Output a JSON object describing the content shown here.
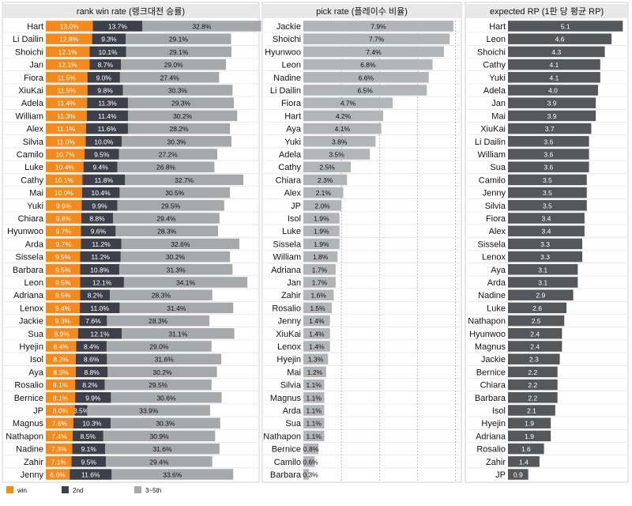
{
  "colors": {
    "win": "#f28a1e",
    "second": "#3d3f4a",
    "third_fifth": "#a6a8ab",
    "pick": "#b3b4b6",
    "rp": "#55575a",
    "panel_header_bg": "#e8e8e8",
    "panel_border": "#cfcfcf"
  },
  "chart_data": [
    {
      "type": "bar",
      "stacked": true,
      "orientation": "horizontal",
      "title": "rank win rate (랭크대전 승률)",
      "categories": [
        "Hart",
        "Li Dailin",
        "Shoichi",
        "Jan",
        "Fiora",
        "XiuKai",
        "Adela",
        "William",
        "Alex",
        "Silvia",
        "Camilo",
        "Luke",
        "Cathy",
        "Mai",
        "Yuki",
        "Chiara",
        "Hyunwoo",
        "Arda",
        "Sissela",
        "Barbara",
        "Leon",
        "Adriana",
        "Lenox",
        "Jackie",
        "Sua",
        "Hyejin",
        "Isol",
        "Aya",
        "Rosalio",
        "Bernice",
        "JP",
        "Magnus",
        "Nathapon",
        "Nadine",
        "Zahir",
        "Jenny"
      ],
      "series": [
        {
          "name": "win",
          "values": [
            13.0,
            12.8,
            12.1,
            12.1,
            11.5,
            11.5,
            11.4,
            11.3,
            11.1,
            11.0,
            10.7,
            10.4,
            10.1,
            10.0,
            9.9,
            9.8,
            9.7,
            9.7,
            9.5,
            9.5,
            9.5,
            9.5,
            9.4,
            9.3,
            8.9,
            8.4,
            8.3,
            8.3,
            8.1,
            8.1,
            8.0,
            7.6,
            7.4,
            7.3,
            7.1,
            6.6
          ]
        },
        {
          "name": "2nd",
          "values": [
            13.7,
            9.3,
            10.1,
            8.7,
            9.0,
            9.8,
            11.3,
            11.4,
            11.6,
            10.0,
            9.5,
            9.4,
            11.8,
            10.4,
            9.9,
            8.8,
            9.6,
            11.2,
            11.2,
            10.8,
            12.1,
            8.2,
            11.0,
            7.6,
            12.1,
            8.4,
            8.6,
            8.8,
            8.2,
            9.9,
            3.5,
            10.3,
            8.5,
            9.1,
            9.5,
            11.6
          ]
        },
        {
          "name": "3~5th",
          "values": [
            32.8,
            29.1,
            29.1,
            29.0,
            27.4,
            30.3,
            29.3,
            30.2,
            28.2,
            30.3,
            27.2,
            26.8,
            32.7,
            30.5,
            29.5,
            29.4,
            28.3,
            32.6,
            30.2,
            31.3,
            34.1,
            28.3,
            31.4,
            28.3,
            31.1,
            29.0,
            31.6,
            30.2,
            29.5,
            30.6,
            33.9,
            30.3,
            30.9,
            31.6,
            29.4,
            33.6
          ]
        }
      ]
    },
    {
      "type": "bar",
      "orientation": "horizontal",
      "title": "pick rate (플레이수 비율)",
      "categories": [
        "Jackie",
        "Shoichi",
        "Hyunwoo",
        "Leon",
        "Nadine",
        "Li Dailin",
        "Fiora",
        "Hart",
        "Aya",
        "Yuki",
        "Adela",
        "Cathy",
        "Chiara",
        "Alex",
        "JP",
        "Isol",
        "Luke",
        "Sissela",
        "William",
        "Adriana",
        "Jan",
        "Zahir",
        "Rosalio",
        "Jenny",
        "XiuKai",
        "Lenox",
        "Hyejin",
        "Mai",
        "Silvia",
        "Magnus",
        "Arda",
        "Sua",
        "Nathapon",
        "Bernice",
        "Camilo",
        "Barbara"
      ],
      "values": [
        7.9,
        7.7,
        7.4,
        6.8,
        6.6,
        6.5,
        4.7,
        4.2,
        4.1,
        3.8,
        3.5,
        2.5,
        2.3,
        2.1,
        2.0,
        1.9,
        1.9,
        1.9,
        1.8,
        1.7,
        1.7,
        1.6,
        1.5,
        1.4,
        1.4,
        1.4,
        1.3,
        1.2,
        1.1,
        1.1,
        1.1,
        1.1,
        1.1,
        0.8,
        0.6,
        0.3
      ],
      "labels": [
        "7.9%",
        "7.7%",
        "7.4%",
        "6.8%",
        "6.6%",
        "6.5%",
        "4.7%",
        "4.2%",
        "4.1%",
        "3.8%",
        "3.5%",
        "2.5%",
        "2.3%",
        "2.1%",
        "2.0%",
        "1.9%",
        "1.9%",
        "1.9%",
        "1.8%",
        "1.7%",
        "1.7%",
        "1.6%",
        "1.5%",
        "1.4%",
        "1.4%",
        "1.4%",
        "1.3%",
        "1.2%",
        "1.1%",
        "1.1%",
        "1.1%",
        "1.1%",
        "1.1%",
        "0.8%",
        "0.6%",
        "0.3%"
      ]
    },
    {
      "type": "bar",
      "orientation": "horizontal",
      "title": "expected RP (1판 당 평균 RP)",
      "categories": [
        "Hart",
        "Leon",
        "Shoichi",
        "Cathy",
        "Yuki",
        "Adela",
        "Jan",
        "Mai",
        "XiuKai",
        "Li Dailin",
        "William",
        "Sua",
        "Camilo",
        "Jenny",
        "Silvia",
        "Fiora",
        "Alex",
        "Sissela",
        "Lenox",
        "Aya",
        "Arda",
        "Nadine",
        "Luke",
        "Nathapon",
        "Hyunwoo",
        "Magnus",
        "Jackie",
        "Bernice",
        "Chiara",
        "Barbara",
        "Isol",
        "Hyejin",
        "Adriana",
        "Rosalio",
        "Zahir",
        "JP"
      ],
      "values": [
        5.1,
        4.6,
        4.3,
        4.1,
        4.1,
        4.0,
        3.9,
        3.9,
        3.7,
        3.6,
        3.6,
        3.6,
        3.5,
        3.5,
        3.5,
        3.4,
        3.4,
        3.3,
        3.3,
        3.1,
        3.1,
        2.9,
        2.6,
        2.5,
        2.4,
        2.4,
        2.3,
        2.2,
        2.2,
        2.2,
        2.1,
        1.9,
        1.9,
        1.6,
        1.4,
        0.9
      ],
      "labels": [
        "5.1",
        "4.6",
        "4.3",
        "4.1",
        "4.1",
        "4.0",
        "3.9",
        "3.9",
        "3.7",
        "3.6",
        "3.6",
        "3.6",
        "3.5",
        "3.5",
        "3.5",
        "3.4",
        "3.4",
        "3.3",
        "3.3",
        "3.1",
        "3.1",
        "2.9",
        "2.6",
        "2.5",
        "2.4",
        "2.4",
        "2.3",
        "2.2",
        "2.2",
        "2.2",
        "2.1",
        "1.9",
        "1.9",
        "1.6",
        "1.4",
        "0.9"
      ]
    }
  ],
  "legend": [
    {
      "label": "win",
      "color": "#f28a1e"
    },
    {
      "label": "2nd",
      "color": "#3d3f4a"
    },
    {
      "label": "3~5th",
      "color": "#a6a8ab"
    }
  ]
}
